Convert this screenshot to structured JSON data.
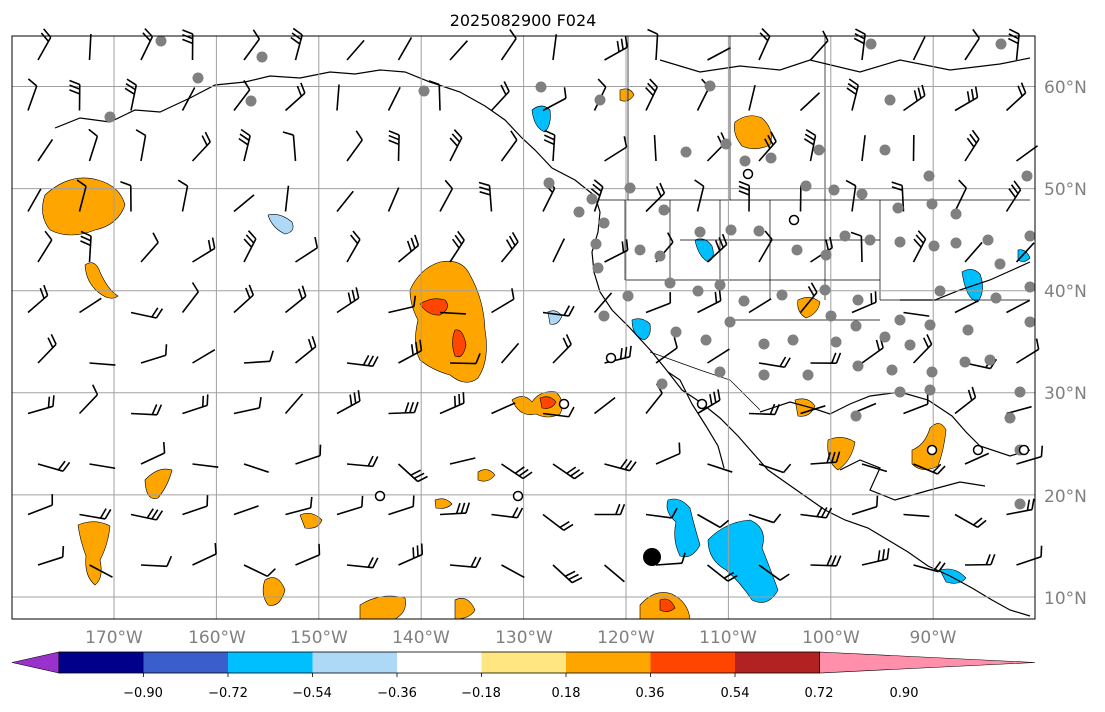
{
  "title": "2025082900 F024",
  "map": {
    "projection": "PlateCarree",
    "lon_range": [
      -180,
      -80
    ],
    "lat_range": [
      8,
      65
    ],
    "gridlines": true,
    "lon_ticks": [
      "170°W",
      "160°W",
      "150°W",
      "140°W",
      "130°W",
      "120°W",
      "110°W",
      "100°W",
      "90°W"
    ],
    "lat_ticks": [
      "10°N",
      "20°N",
      "30°N",
      "40°N",
      "50°N",
      "60°N"
    ],
    "colors": {
      "gridline": "#a0a0a0",
      "coastline": "#000000",
      "station_marker": "#808080",
      "wind_barb": "#000000"
    }
  },
  "colorbar": {
    "tick_labels": [
      "−0.90",
      "−0.72",
      "−0.54",
      "−0.36",
      "−0.18",
      "0.18",
      "0.36",
      "0.54",
      "0.72",
      "0.90"
    ],
    "colors": [
      "#9932cc",
      "#00008b",
      "#3a5fcd",
      "#00bfff",
      "#add8f6",
      "#ffffff",
      "#ffe680",
      "#ffa500",
      "#ff4500",
      "#b22222",
      "#ff8fab"
    ],
    "extend": "both"
  }
}
